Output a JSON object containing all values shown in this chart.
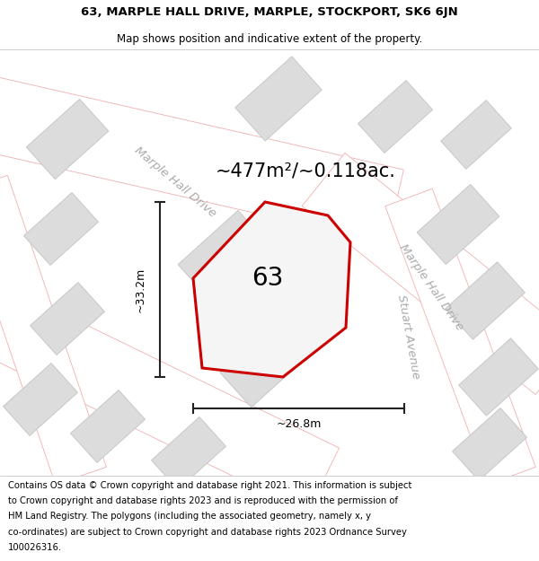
{
  "title_line1": "63, MARPLE HALL DRIVE, MARPLE, STOCKPORT, SK6 6JN",
  "title_line2": "Map shows position and indicative extent of the property.",
  "area_text": "~477m²/~0.118ac.",
  "number_label": "63",
  "dim_width": "~26.8m",
  "dim_height": "~33.2m",
  "road_label_top": "Marple Hall Drive",
  "road_label_right": "Marple Hall Drive",
  "road_label_stuart": "Stuart Avenue",
  "footer_text": "Contains OS data © Crown copyright and database right 2021. This information is subject to Crown copyright and database rights 2023 and is reproduced with the permission of HM Land Registry. The polygons (including the associated geometry, namely x, y co-ordinates) are subject to Crown copyright and database rights 2023 Ordnance Survey 100026316.",
  "map_bg": "#f5f5f5",
  "road_fill": "#ffffff",
  "road_edge": "#f0b0b0",
  "building_fill": "#dcdcdc",
  "building_edge": "#c8c8c8",
  "plot_edge": "#cc0000",
  "plot_fill": "#f5f5f5",
  "dim_color": "#222222",
  "road_label_color": "#aaaaaa",
  "title_fs": 9.5,
  "subtitle_fs": 8.5,
  "area_fs": 15,
  "number_fs": 20,
  "road_fs": 9.5,
  "footer_fs": 7.2
}
